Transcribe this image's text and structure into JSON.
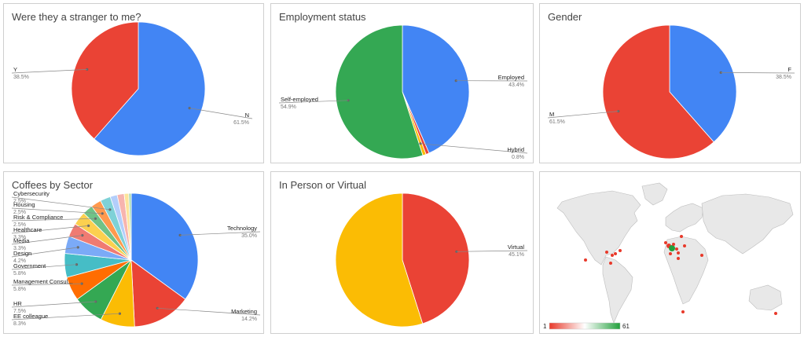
{
  "chart_data": [
    {
      "type": "pie",
      "title": "Were they a stranger to me?",
      "slices": [
        {
          "label": "N",
          "value": 61.5,
          "pct": "61.5%",
          "color": "#4285f4"
        },
        {
          "label": "Y",
          "value": 38.5,
          "pct": "38.5%",
          "color": "#ea4335"
        }
      ]
    },
    {
      "type": "pie",
      "title": "Employment status",
      "slices": [
        {
          "label": "Employed",
          "value": 43.4,
          "pct": "43.4%",
          "color": "#4285f4"
        },
        {
          "label": "",
          "value": 0.8,
          "pct": "",
          "color": "#ea4335"
        },
        {
          "label": "Hybrid",
          "value": 0.8,
          "pct": "0.8%",
          "color": "#fbbc04"
        },
        {
          "label": "Self-employed",
          "value": 54.9,
          "pct": "54.9%",
          "color": "#34a853"
        }
      ]
    },
    {
      "type": "pie",
      "title": "Gender",
      "slices": [
        {
          "label": "F",
          "value": 38.5,
          "pct": "38.5%",
          "color": "#4285f4"
        },
        {
          "label": "M",
          "value": 61.5,
          "pct": "61.5%",
          "color": "#ea4335"
        }
      ]
    },
    {
      "type": "pie",
      "title": "Coffees by Sector",
      "slices": [
        {
          "label": "Technology",
          "value": 35.0,
          "pct": "35.0%",
          "color": "#4285f4"
        },
        {
          "label": "Marketing",
          "value": 14.2,
          "pct": "14.2%",
          "color": "#ea4335"
        },
        {
          "label": "EE colleague",
          "value": 8.3,
          "pct": "8.3%",
          "color": "#fbbc04"
        },
        {
          "label": "HR",
          "value": 7.5,
          "pct": "7.5%",
          "color": "#34a853"
        },
        {
          "label": "Management Consul...",
          "value": 5.8,
          "pct": "5.8%",
          "color": "#ff6d01"
        },
        {
          "label": "Government",
          "value": 5.8,
          "pct": "5.8%",
          "color": "#46bdc6"
        },
        {
          "label": "Design",
          "value": 4.2,
          "pct": "4.2%",
          "color": "#7baaf7"
        },
        {
          "label": "Media",
          "value": 3.3,
          "pct": "3.3%",
          "color": "#f07b72"
        },
        {
          "label": "Healthcare",
          "value": 3.3,
          "pct": "3.3%",
          "color": "#fcd04f"
        },
        {
          "label": "Risk & Compliance",
          "value": 2.5,
          "pct": "2.5%",
          "color": "#71c287"
        },
        {
          "label": "Housing",
          "value": 2.5,
          "pct": "2.5%",
          "color": "#ff994d"
        },
        {
          "label": "Cybersecurity",
          "value": 2.5,
          "pct": "2.5%",
          "color": "#7ed1d7"
        },
        {
          "label": "",
          "value": 1.7,
          "pct": "",
          "color": "#b3cefb"
        },
        {
          "label": "",
          "value": 1.7,
          "pct": "",
          "color": "#f7b4ae"
        },
        {
          "label": "",
          "value": 1.1,
          "pct": "",
          "color": "#fde49b"
        },
        {
          "label": "",
          "value": 0.6,
          "pct": "",
          "color": "#a8dab5"
        }
      ]
    },
    {
      "type": "pie",
      "title": "In Person or Virtual",
      "slices": [
        {
          "label": "Virtual",
          "value": 45.1,
          "pct": "45.1%",
          "color": "#ea4335"
        },
        {
          "label": "",
          "value": 54.9,
          "pct": "",
          "color": "#fbbc04"
        }
      ]
    },
    {
      "type": "geo",
      "title": "",
      "scale_min": "1",
      "scale_max": "61",
      "scale_colors": [
        "#e8392a",
        "#ffffff",
        "#22a03c"
      ]
    }
  ]
}
